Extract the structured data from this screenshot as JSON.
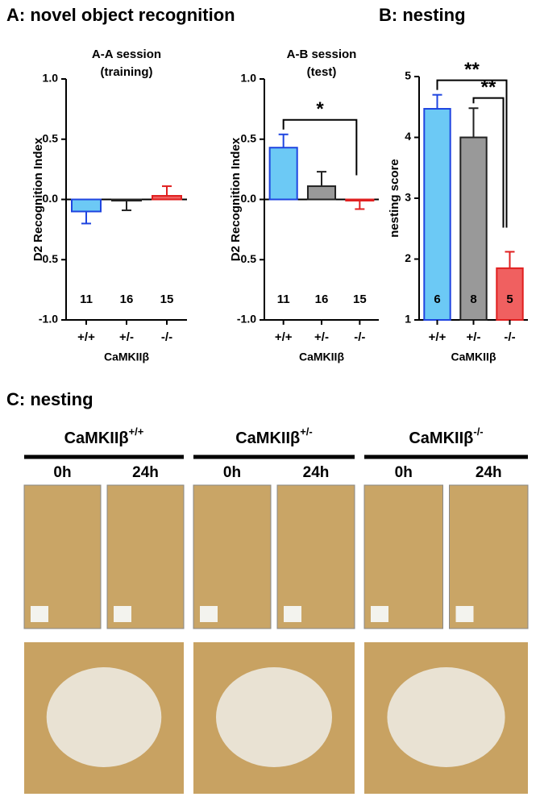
{
  "panel_titles": [
    "A: novel object recognition",
    "B: nesting",
    "C: nesting"
  ],
  "chart_data": [
    {
      "type": "bar",
      "title": "A-A session",
      "subtitle": "(training)",
      "y_label": "D2 Recognition Index",
      "x_label": "CaMKIIβ",
      "categories": [
        "+/+",
        "+/-",
        "-/-"
      ],
      "values": [
        -0.1,
        -0.01,
        0.03
      ],
      "errors": [
        0.1,
        0.08,
        0.08
      ],
      "n": [
        11,
        16,
        15
      ],
      "colors": [
        "#6cc9f5",
        "#999999",
        "#f06060"
      ],
      "edge_colors": [
        "#1f45e0",
        "#222222",
        "#e02020"
      ],
      "ylim": [
        -1,
        1
      ],
      "yticks": [
        {
          "value": -1,
          "label": "-1.0"
        },
        -0.5,
        {
          "value": 0,
          "label": "0.0"
        },
        0.5,
        {
          "value": 1,
          "label": "1.0"
        }
      ],
      "significance": []
    },
    {
      "type": "bar",
      "title": "A-B session",
      "subtitle": "(test)",
      "y_label": "D2 Recognition Index",
      "x_label": "CaMKIIβ",
      "categories": [
        "+/+",
        "+/-",
        "-/-"
      ],
      "values": [
        0.43,
        0.11,
        -0.01
      ],
      "errors": [
        0.11,
        0.12,
        0.07
      ],
      "n": [
        11,
        16,
        15
      ],
      "colors": [
        "#6cc9f5",
        "#999999",
        "#f06060"
      ],
      "edge_colors": [
        "#1f45e0",
        "#222222",
        "#e02020"
      ],
      "ylim": [
        -1,
        1
      ],
      "yticks": [
        {
          "value": -1,
          "label": "-1.0"
        },
        -0.5,
        {
          "value": 0,
          "label": "0.0"
        },
        0.5,
        {
          "value": 1,
          "label": "1.0"
        }
      ],
      "significance": [
        {
          "from": 0,
          "to": 2,
          "label": "*"
        }
      ]
    },
    {
      "type": "bar",
      "y_label": "nesting score",
      "x_label": "CaMKIIβ",
      "categories": [
        "+/+",
        "+/-",
        "-/-"
      ],
      "values": [
        4.47,
        4.0,
        1.85
      ],
      "errors": [
        0.23,
        0.48,
        0.27
      ],
      "n": [
        6,
        8,
        5
      ],
      "colors": [
        "#6cc9f5",
        "#999999",
        "#f06060"
      ],
      "edge_colors": [
        "#1f45e0",
        "#222222",
        "#e02020"
      ],
      "ylim": [
        1,
        5
      ],
      "yticks": [
        1,
        2,
        3,
        4,
        5
      ],
      "significance": [
        {
          "from": 0,
          "to": 2,
          "label": "**"
        },
        {
          "from": 1,
          "to": 2,
          "label": "**"
        }
      ]
    }
  ],
  "panel_c": {
    "groups": [
      {
        "gene": "CaMKIIβ",
        "genotype": "+/+",
        "times": [
          "0h",
          "24h"
        ]
      },
      {
        "gene": "CaMKIIβ",
        "genotype": "+/-",
        "times": [
          "0h",
          "24h"
        ]
      },
      {
        "gene": "CaMKIIβ",
        "genotype": "-/-",
        "times": [
          "0h",
          "24h"
        ]
      }
    ]
  }
}
